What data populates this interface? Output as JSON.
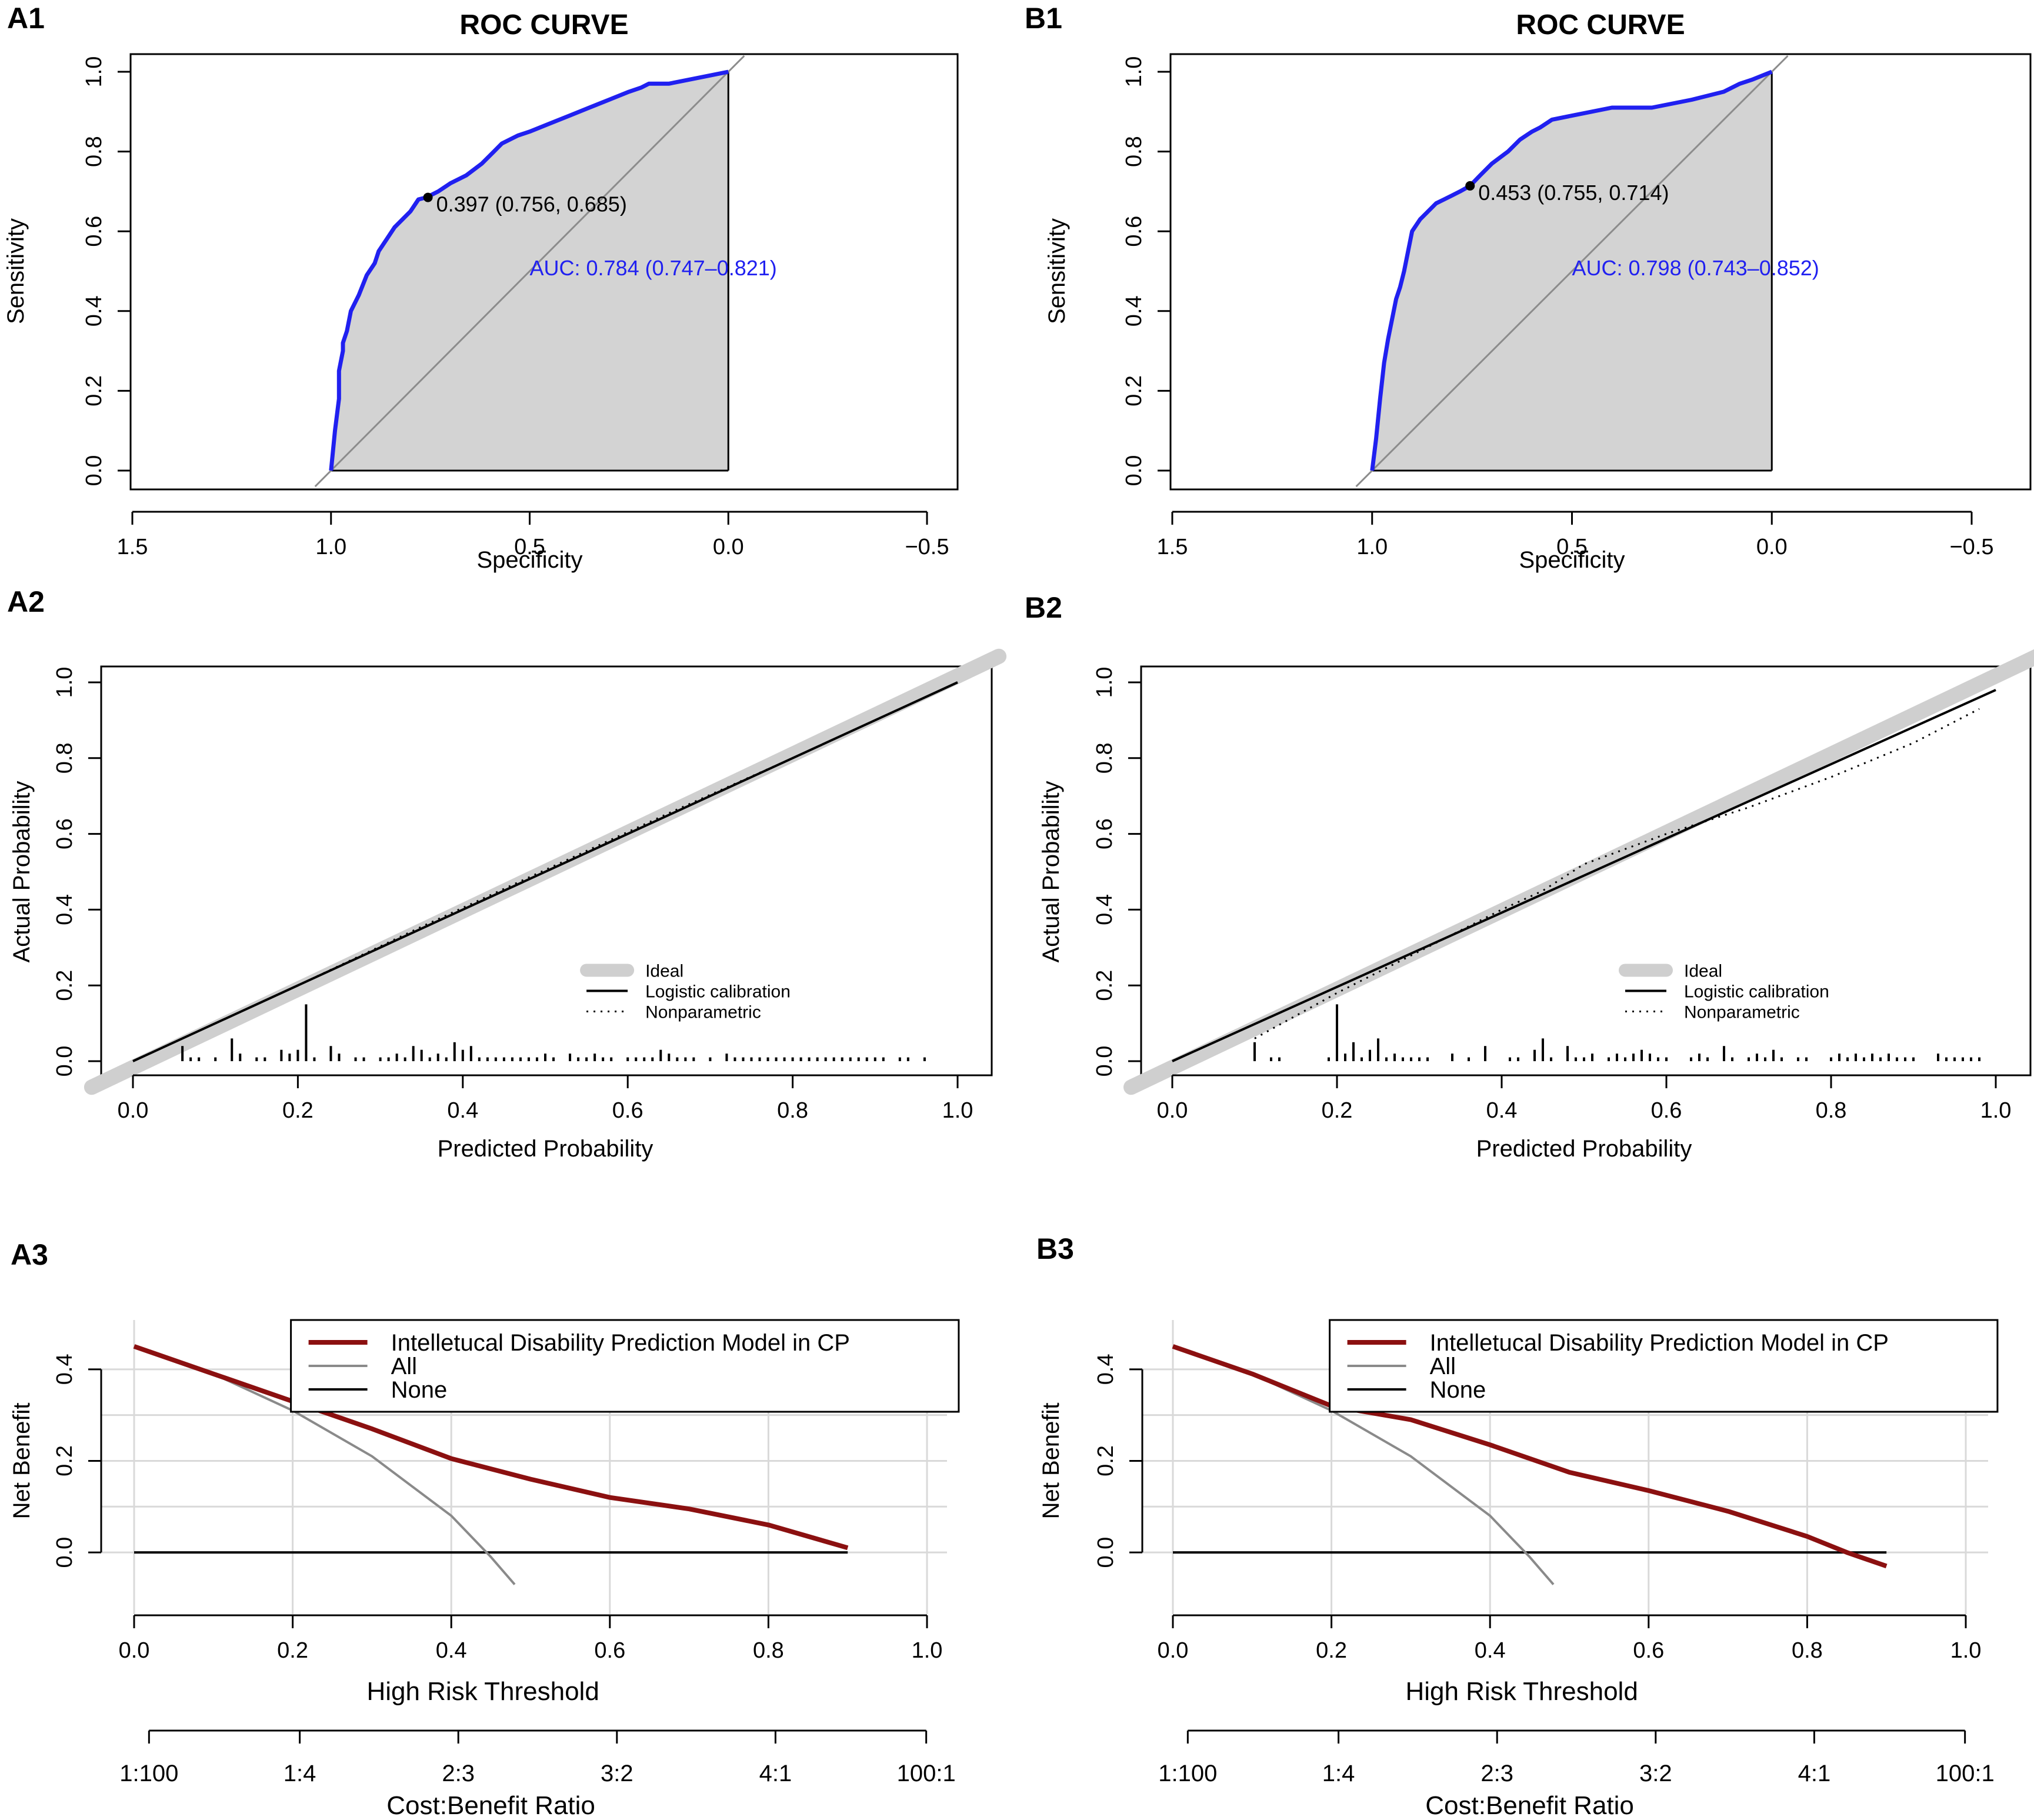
{
  "colors": {
    "roc": "#2020f0",
    "dca_model": "#8b1010",
    "ideal": "#cfcfcf",
    "all": "#8a8a8a",
    "fill": "#d3d3d3"
  },
  "panels": {
    "A1": "A1",
    "B1": "B1",
    "A2": "A2",
    "B2": "B2",
    "A3": "A3",
    "B3": "B3"
  },
  "chart_data": [
    {
      "id": "A1",
      "type": "line",
      "title": "ROC CURVE",
      "xlabel": "Specificity",
      "ylabel": "Sensitivity",
      "xlim": [
        1.5,
        -0.5
      ],
      "ylim": [
        0,
        1
      ],
      "xticks": [
        1.5,
        1.0,
        0.5,
        0.0,
        -0.5
      ],
      "xtick_labels": [
        "1.5",
        "1.0",
        "0.5",
        "0.0",
        "−0.5"
      ],
      "yticks": [
        0,
        0.2,
        0.4,
        0.6,
        0.8,
        1.0
      ],
      "ytick_labels": [
        "0.0",
        "0.2",
        "0.4",
        "0.6",
        "0.8",
        "1.0"
      ],
      "series": [
        {
          "x": [
            1.0,
            0.99,
            0.98,
            0.98,
            0.97,
            0.97,
            0.96,
            0.95,
            0.93,
            0.91,
            0.89,
            0.88,
            0.86,
            0.84,
            0.82,
            0.8,
            0.78,
            0.76,
            0.73,
            0.7,
            0.66,
            0.62,
            0.59,
            0.57,
            0.55,
            0.53,
            0.5,
            0.45,
            0.4,
            0.35,
            0.3,
            0.25,
            0.22,
            0.2,
            0.15,
            0.1,
            0.05,
            0.0
          ],
          "y": [
            0.0,
            0.1,
            0.18,
            0.25,
            0.3,
            0.32,
            0.35,
            0.4,
            0.44,
            0.49,
            0.52,
            0.55,
            0.58,
            0.61,
            0.63,
            0.65,
            0.68,
            0.685,
            0.7,
            0.72,
            0.74,
            0.77,
            0.8,
            0.82,
            0.83,
            0.84,
            0.85,
            0.87,
            0.89,
            0.91,
            0.93,
            0.95,
            0.96,
            0.97,
            0.97,
            0.98,
            0.99,
            1.0
          ]
        }
      ],
      "point_label": "0.397 (0.756, 0.685)",
      "point": [
        0.756,
        0.685
      ],
      "auc_label": "AUC: 0.784 (0.747–0.821)"
    },
    {
      "id": "B1",
      "type": "line",
      "title": "ROC CURVE",
      "xlabel": "Specificity",
      "ylabel": "Sensitivity",
      "xlim": [
        1.5,
        -0.5
      ],
      "ylim": [
        0,
        1
      ],
      "xticks": [
        1.5,
        1.0,
        0.5,
        0.0,
        -0.5
      ],
      "xtick_labels": [
        "1.5",
        "1.0",
        "0.5",
        "0.0",
        "−0.5"
      ],
      "yticks": [
        0,
        0.2,
        0.4,
        0.6,
        0.8,
        1.0
      ],
      "ytick_labels": [
        "0.0",
        "0.2",
        "0.4",
        "0.6",
        "0.8",
        "1.0"
      ],
      "series": [
        {
          "x": [
            1.0,
            0.99,
            0.98,
            0.97,
            0.96,
            0.95,
            0.94,
            0.93,
            0.92,
            0.91,
            0.9,
            0.88,
            0.86,
            0.84,
            0.82,
            0.8,
            0.78,
            0.755,
            0.73,
            0.7,
            0.66,
            0.63,
            0.6,
            0.58,
            0.55,
            0.5,
            0.4,
            0.3,
            0.2,
            0.12,
            0.08,
            0.05,
            0.0
          ],
          "y": [
            0.0,
            0.08,
            0.18,
            0.27,
            0.33,
            0.38,
            0.43,
            0.46,
            0.5,
            0.55,
            0.6,
            0.63,
            0.65,
            0.67,
            0.68,
            0.69,
            0.7,
            0.714,
            0.74,
            0.77,
            0.8,
            0.83,
            0.85,
            0.86,
            0.88,
            0.89,
            0.91,
            0.91,
            0.93,
            0.95,
            0.97,
            0.98,
            1.0
          ]
        }
      ],
      "point_label": "0.453 (0.755, 0.714)",
      "point": [
        0.755,
        0.714
      ],
      "auc_label": "AUC: 0.798 (0.743–0.852)"
    },
    {
      "id": "A2",
      "type": "line",
      "xlabel": "Predicted Probability",
      "ylabel": "Actual Probability",
      "xlim": [
        0,
        1
      ],
      "ylim": [
        0,
        1
      ],
      "xticks": [
        0,
        0.2,
        0.4,
        0.6,
        0.8,
        1.0
      ],
      "xtick_labels": [
        "0.0",
        "0.2",
        "0.4",
        "0.6",
        "0.8",
        "1.0"
      ],
      "yticks": [
        0,
        0.2,
        0.4,
        0.6,
        0.8,
        1.0
      ],
      "ytick_labels": [
        "0.0",
        "0.2",
        "0.4",
        "0.6",
        "0.8",
        "1.0"
      ],
      "legend": [
        "Ideal",
        "Logistic calibration",
        "Nonparametric"
      ],
      "series": [
        {
          "name": "Ideal",
          "x": [
            0,
            1
          ],
          "y": [
            0,
            1
          ]
        },
        {
          "name": "Logistic calibration",
          "x": [
            0,
            1
          ],
          "y": [
            0,
            1
          ]
        },
        {
          "name": "Nonparametric",
          "x": [
            0.06,
            0.2,
            0.35,
            0.5,
            0.65,
            0.8,
            0.96
          ],
          "y": [
            0.06,
            0.2,
            0.355,
            0.505,
            0.655,
            0.8,
            0.96
          ]
        }
      ],
      "rug_x": [
        0.06,
        0.07,
        0.08,
        0.1,
        0.12,
        0.13,
        0.15,
        0.16,
        0.18,
        0.19,
        0.2,
        0.21,
        0.22,
        0.24,
        0.25,
        0.27,
        0.28,
        0.3,
        0.31,
        0.32,
        0.33,
        0.34,
        0.35,
        0.36,
        0.37,
        0.38,
        0.39,
        0.4,
        0.41,
        0.42,
        0.43,
        0.44,
        0.45,
        0.46,
        0.47,
        0.48,
        0.49,
        0.5,
        0.51,
        0.53,
        0.54,
        0.55,
        0.56,
        0.57,
        0.58,
        0.6,
        0.61,
        0.62,
        0.63,
        0.64,
        0.65,
        0.66,
        0.67,
        0.68,
        0.7,
        0.72,
        0.73,
        0.74,
        0.75,
        0.76,
        0.77,
        0.78,
        0.79,
        0.8,
        0.81,
        0.82,
        0.83,
        0.84,
        0.85,
        0.86,
        0.87,
        0.88,
        0.89,
        0.9,
        0.91,
        0.93,
        0.94,
        0.96
      ],
      "rug_h": [
        0.04,
        0.01,
        0.01,
        0.01,
        0.06,
        0.02,
        0.01,
        0.01,
        0.03,
        0.02,
        0.03,
        0.15,
        0.01,
        0.04,
        0.02,
        0.01,
        0.01,
        0.01,
        0.01,
        0.02,
        0.01,
        0.04,
        0.03,
        0.01,
        0.02,
        0.01,
        0.05,
        0.03,
        0.04,
        0.01,
        0.01,
        0.01,
        0.01,
        0.01,
        0.01,
        0.01,
        0.01,
        0.02,
        0.01,
        0.02,
        0.01,
        0.01,
        0.02,
        0.01,
        0.01,
        0.01,
        0.01,
        0.01,
        0.01,
        0.03,
        0.02,
        0.01,
        0.01,
        0.01,
        0.01,
        0.02,
        0.01,
        0.01,
        0.01,
        0.01,
        0.01,
        0.01,
        0.01,
        0.01,
        0.01,
        0.01,
        0.01,
        0.01,
        0.01,
        0.01,
        0.01,
        0.01,
        0.01,
        0.01,
        0.01,
        0.01,
        0.01,
        0.01
      ]
    },
    {
      "id": "B2",
      "type": "line",
      "xlabel": "Predicted Probability",
      "ylabel": "Actual Probability",
      "xlim": [
        0,
        1
      ],
      "ylim": [
        0,
        1
      ],
      "xticks": [
        0,
        0.2,
        0.4,
        0.6,
        0.8,
        1.0
      ],
      "xtick_labels": [
        "0.0",
        "0.2",
        "0.4",
        "0.6",
        "0.8",
        "1.0"
      ],
      "yticks": [
        0,
        0.2,
        0.4,
        0.6,
        0.8,
        1.0
      ],
      "ytick_labels": [
        "0.0",
        "0.2",
        "0.4",
        "0.6",
        "0.8",
        "1.0"
      ],
      "legend": [
        "Ideal",
        "Logistic calibration",
        "Nonparametric"
      ],
      "series": [
        {
          "name": "Ideal",
          "x": [
            0,
            1
          ],
          "y": [
            0,
            1
          ]
        },
        {
          "name": "Logistic calibration",
          "x": [
            0,
            0.5,
            1
          ],
          "y": [
            0,
            0.49,
            0.98
          ]
        },
        {
          "name": "Nonparametric",
          "x": [
            0.1,
            0.2,
            0.3,
            0.4,
            0.45,
            0.5,
            0.6,
            0.7,
            0.8,
            0.9,
            0.98
          ],
          "y": [
            0.06,
            0.18,
            0.29,
            0.4,
            0.45,
            0.52,
            0.6,
            0.67,
            0.75,
            0.84,
            0.93
          ]
        }
      ],
      "rug_x": [
        0.1,
        0.12,
        0.13,
        0.19,
        0.2,
        0.21,
        0.22,
        0.23,
        0.24,
        0.25,
        0.26,
        0.27,
        0.28,
        0.29,
        0.3,
        0.31,
        0.34,
        0.36,
        0.38,
        0.41,
        0.42,
        0.44,
        0.45,
        0.46,
        0.48,
        0.49,
        0.5,
        0.51,
        0.53,
        0.54,
        0.55,
        0.56,
        0.57,
        0.58,
        0.59,
        0.6,
        0.63,
        0.64,
        0.65,
        0.67,
        0.68,
        0.7,
        0.71,
        0.72,
        0.73,
        0.74,
        0.76,
        0.77,
        0.8,
        0.81,
        0.82,
        0.83,
        0.84,
        0.85,
        0.86,
        0.87,
        0.88,
        0.89,
        0.9,
        0.93,
        0.94,
        0.95,
        0.96,
        0.97,
        0.98
      ],
      "rug_h": [
        0.05,
        0.01,
        0.01,
        0.01,
        0.15,
        0.02,
        0.05,
        0.01,
        0.03,
        0.06,
        0.01,
        0.02,
        0.01,
        0.01,
        0.01,
        0.01,
        0.02,
        0.01,
        0.04,
        0.01,
        0.01,
        0.03,
        0.06,
        0.01,
        0.04,
        0.01,
        0.01,
        0.02,
        0.01,
        0.02,
        0.01,
        0.02,
        0.03,
        0.02,
        0.01,
        0.01,
        0.01,
        0.02,
        0.01,
        0.04,
        0.01,
        0.01,
        0.02,
        0.01,
        0.03,
        0.01,
        0.01,
        0.01,
        0.01,
        0.02,
        0.01,
        0.02,
        0.01,
        0.02,
        0.01,
        0.02,
        0.01,
        0.01,
        0.01,
        0.02,
        0.01,
        0.01,
        0.01,
        0.01,
        0.01
      ]
    },
    {
      "id": "A3",
      "type": "line",
      "xlabel": "High Risk Threshold",
      "ylabel": "Net Benefit",
      "xlabel2": "Cost:Benefit Ratio",
      "xlim": [
        0,
        1
      ],
      "ylim": [
        -0.05,
        0.5
      ],
      "xticks": [
        0,
        0.2,
        0.4,
        0.6,
        0.8,
        1.0
      ],
      "xtick_labels": [
        "0.0",
        "0.2",
        "0.4",
        "0.6",
        "0.8",
        "1.0"
      ],
      "yticks": [
        0,
        0.2,
        0.4
      ],
      "ytick_labels": [
        "0.0",
        "0.2",
        "0.4"
      ],
      "ratio_ticks": [
        0.0099,
        0.2,
        0.4,
        0.6,
        0.8,
        0.9901
      ],
      "ratio_labels": [
        "1:100",
        "1:4",
        "2:3",
        "3:2",
        "4:1",
        "100:1"
      ],
      "legend": [
        "Intelletucal Disability Prediction Model in CP",
        "All",
        "None"
      ],
      "series": [
        {
          "name": "Intelletucal Disability Prediction Model in CP",
          "x": [
            0.0,
            0.1,
            0.2,
            0.3,
            0.4,
            0.5,
            0.6,
            0.7,
            0.8,
            0.9
          ],
          "y": [
            0.45,
            0.39,
            0.33,
            0.27,
            0.205,
            0.16,
            0.12,
            0.095,
            0.06,
            0.01
          ]
        },
        {
          "name": "All",
          "x": [
            0.0,
            0.1,
            0.2,
            0.3,
            0.4,
            0.45,
            0.48
          ],
          "y": [
            0.45,
            0.39,
            0.31,
            0.21,
            0.08,
            -0.01,
            -0.07
          ]
        },
        {
          "name": "None",
          "x": [
            0.0,
            0.9
          ],
          "y": [
            0.0,
            0.0
          ]
        }
      ]
    },
    {
      "id": "B3",
      "type": "line",
      "xlabel": "High Risk Threshold",
      "ylabel": "Net Benefit",
      "xlabel2": "Cost:Benefit Ratio",
      "xlim": [
        0,
        1
      ],
      "ylim": [
        -0.05,
        0.5
      ],
      "xticks": [
        0,
        0.2,
        0.4,
        0.6,
        0.8,
        1.0
      ],
      "xtick_labels": [
        "0.0",
        "0.2",
        "0.4",
        "0.6",
        "0.8",
        "1.0"
      ],
      "yticks": [
        0,
        0.2,
        0.4
      ],
      "ytick_labels": [
        "0.0",
        "0.2",
        "0.4"
      ],
      "ratio_ticks": [
        0.0099,
        0.2,
        0.4,
        0.6,
        0.8,
        0.9901
      ],
      "ratio_labels": [
        "1:100",
        "1:4",
        "2:3",
        "3:2",
        "4:1",
        "100:1"
      ],
      "legend": [
        "Intelletucal Disability Prediction Model in CP",
        "All",
        "None"
      ],
      "series": [
        {
          "name": "Intelletucal Disability Prediction Model in CP",
          "x": [
            0.0,
            0.1,
            0.2,
            0.3,
            0.4,
            0.5,
            0.6,
            0.7,
            0.8,
            0.85,
            0.9
          ],
          "y": [
            0.45,
            0.39,
            0.32,
            0.29,
            0.235,
            0.175,
            0.135,
            0.09,
            0.035,
            0.0,
            -0.03
          ]
        },
        {
          "name": "All",
          "x": [
            0.0,
            0.1,
            0.2,
            0.3,
            0.4,
            0.45,
            0.48
          ],
          "y": [
            0.45,
            0.39,
            0.31,
            0.21,
            0.08,
            -0.01,
            -0.07
          ]
        },
        {
          "name": "None",
          "x": [
            0.0,
            0.9
          ],
          "y": [
            0.0,
            0.0
          ]
        }
      ]
    }
  ]
}
